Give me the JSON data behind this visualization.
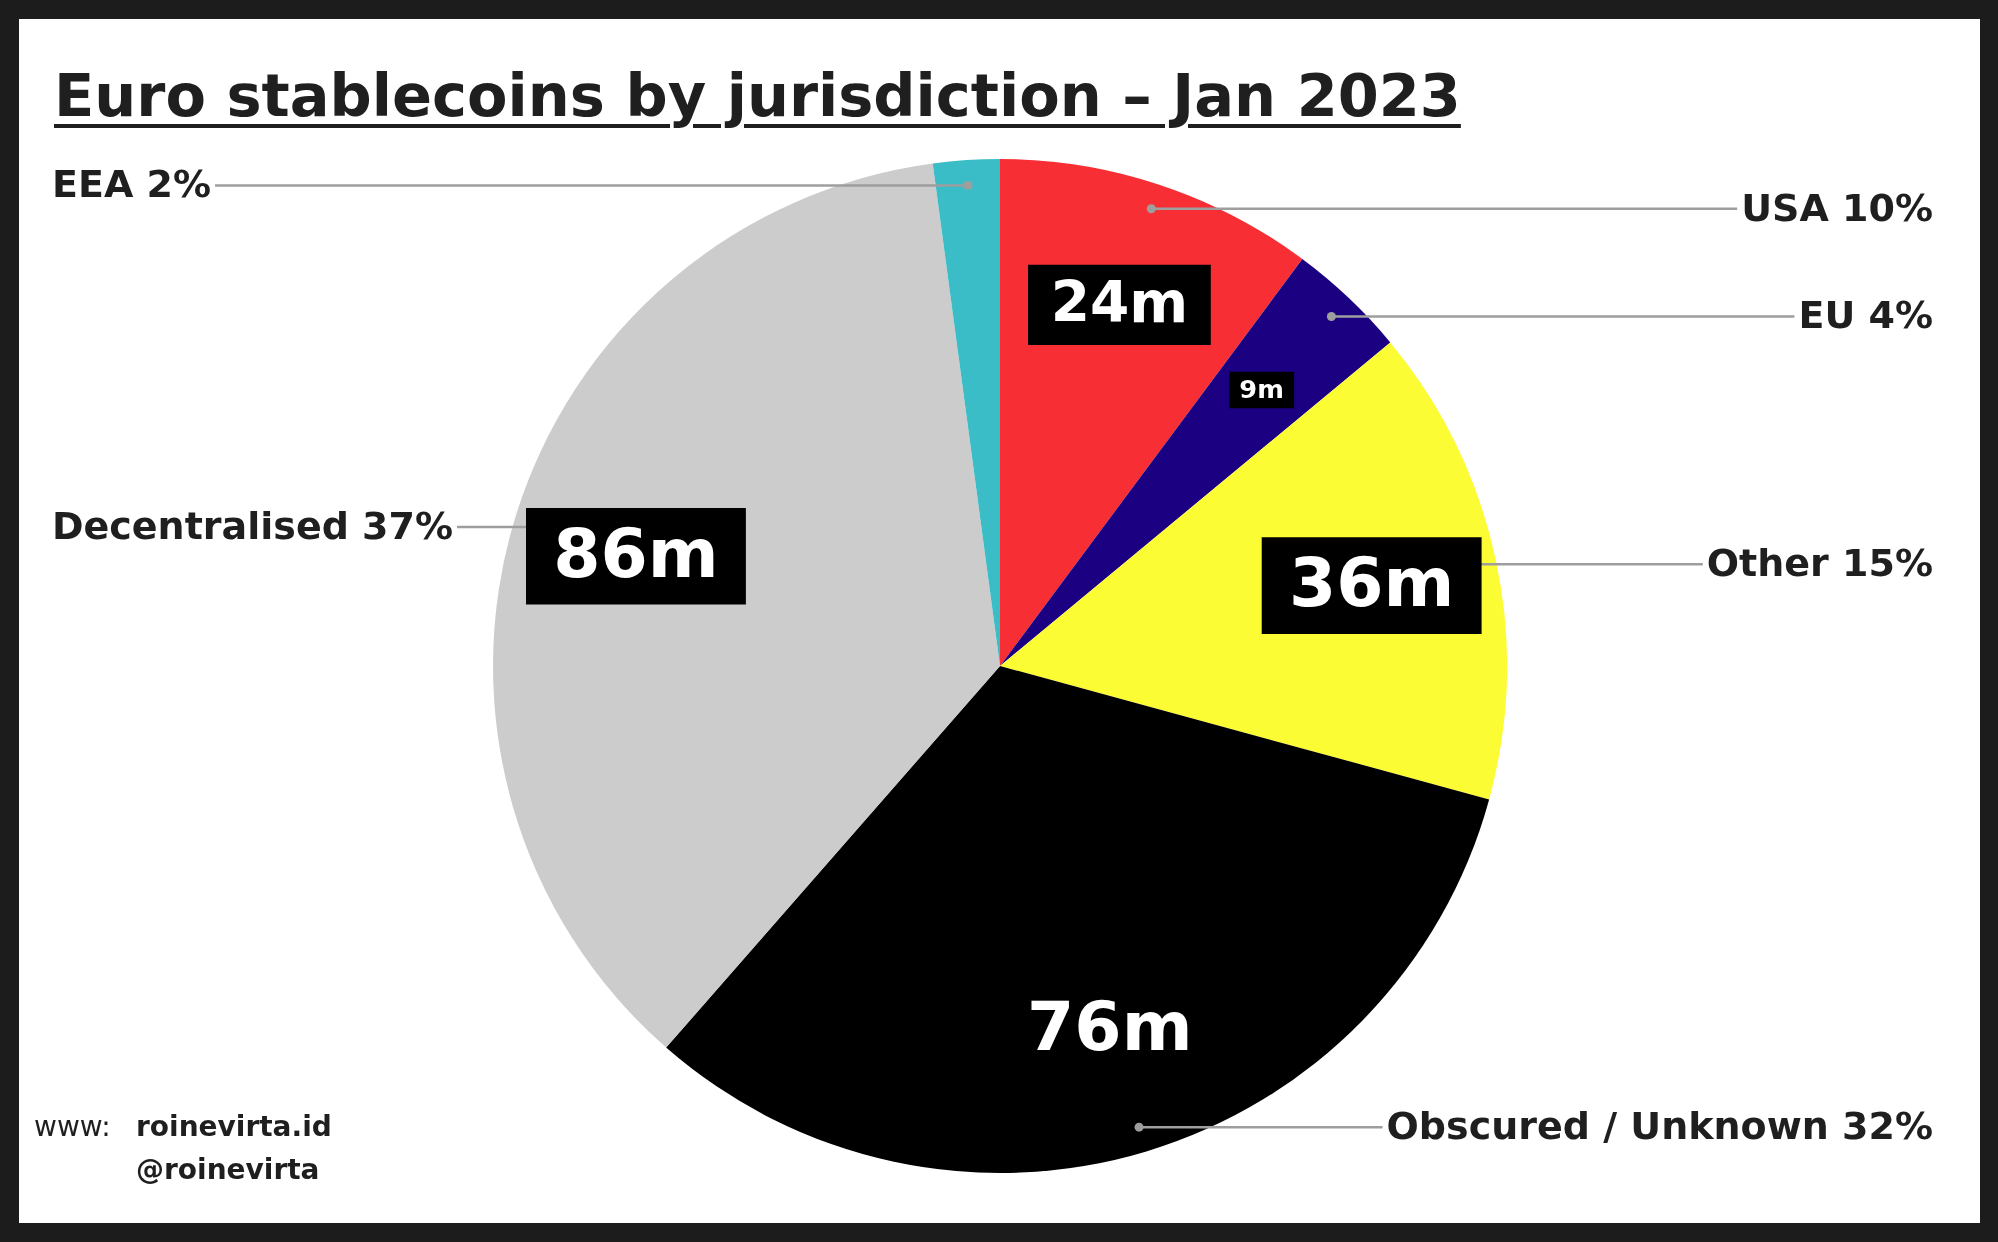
{
  "chart_data": {
    "type": "pie",
    "title": "Euro stablecoins by jurisdiction – Jan 2023",
    "categories": [
      "USA 10%",
      "EU 4%",
      "Other 15%",
      "Obscured / Unknown 32%",
      "Decentralised 37%",
      "EEA 2%"
    ],
    "values": [
      24,
      9,
      36,
      76,
      86,
      5
    ],
    "colors": [
      "#f72f35",
      "#1b0082",
      "#fcfc35",
      "#000000",
      "#cccccc",
      "#3bbdc8"
    ],
    "value_labels": [
      "24m",
      "9m",
      "36m",
      "76m",
      "86m",
      null
    ],
    "annotations": [
      "www: roinevirta.id",
      "@roinevirta"
    ]
  }
}
